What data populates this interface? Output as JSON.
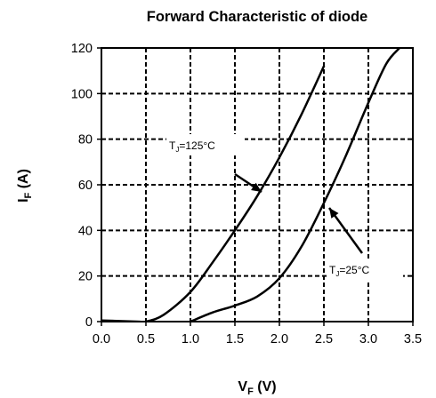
{
  "chart_data": {
    "type": "line",
    "title": "Forward Characteristic of diode",
    "xlabel": {
      "main": "V",
      "sub": "F",
      "unit": " (V)"
    },
    "ylabel": {
      "main": "I",
      "sub": "F",
      "unit": " (A)"
    },
    "xlim": [
      0,
      3.5
    ],
    "ylim": [
      0,
      120
    ],
    "x_ticks": [
      "0.0",
      "0.5",
      "1.0",
      "1.5",
      "2.0",
      "2.5",
      "3.0",
      "3.5"
    ],
    "y_ticks": [
      "0",
      "20",
      "40",
      "60",
      "80",
      "100",
      "120"
    ],
    "grid": true,
    "grid_style": "dashed",
    "series": [
      {
        "name": "TJ=125°C",
        "x": [
          0.0,
          0.4,
          0.5,
          0.7,
          1.0,
          1.25,
          1.5,
          1.75,
          2.0,
          2.25,
          2.5
        ],
        "y": [
          0.5,
          0.0,
          0.0,
          3.0,
          13.0,
          26.0,
          40.0,
          55.0,
          72.0,
          91.0,
          112.0
        ]
      },
      {
        "name": "TJ=25°C",
        "x": [
          1.0,
          1.25,
          1.5,
          1.75,
          2.0,
          2.25,
          2.5,
          2.75,
          3.0,
          3.2,
          3.35
        ],
        "y": [
          0.0,
          4.0,
          7.0,
          11.0,
          19.0,
          33.0,
          52.0,
          73.0,
          96.0,
          113.0,
          120.0
        ]
      }
    ],
    "annotations": [
      {
        "series": "TJ=125°C",
        "main": "T",
        "sub": "J",
        "rest": "=125°C"
      },
      {
        "series": "TJ=25°C",
        "main": "T",
        "sub": "J",
        "rest": "=25°C"
      }
    ]
  }
}
